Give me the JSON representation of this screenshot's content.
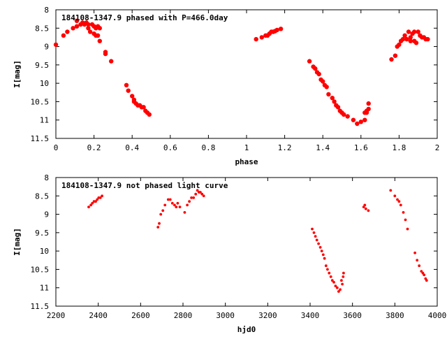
{
  "chart_data": [
    {
      "type": "scatter",
      "title": "184108-1347.9 phased with P=466.0day",
      "xlabel": "phase",
      "ylabel": "I[mag]",
      "xlim": [
        0,
        2
      ],
      "ylim": [
        8,
        11.5
      ],
      "y_inverted": true,
      "xticks": [
        "0",
        "0.2",
        "0.4",
        "0.6",
        "0.8",
        "1",
        "1.2",
        "1.4",
        "1.6",
        "1.8",
        "2"
      ],
      "yticks": [
        "8",
        "8.5",
        "9",
        "9.5",
        "10",
        "10.5",
        "11",
        "11.5"
      ],
      "marker_color": "#ff0000",
      "grid": false,
      "series": [
        {
          "x": [
            0.0,
            0.04,
            0.06,
            0.09,
            0.11,
            0.11,
            0.13,
            0.14,
            0.15,
            0.16,
            0.17,
            0.17,
            0.18,
            0.19,
            0.2,
            0.2,
            0.21,
            0.21,
            0.22,
            0.22,
            0.23,
            0.23,
            0.26,
            0.26,
            0.29,
            0.37,
            0.38,
            0.4,
            0.41,
            0.41,
            0.42,
            0.43,
            0.44,
            0.45,
            0.46,
            0.47,
            0.48,
            0.49,
            1.05,
            1.08,
            1.1,
            1.11,
            1.12,
            1.13,
            1.14,
            1.15,
            1.16,
            1.18,
            1.33,
            1.35,
            1.36,
            1.37,
            1.38,
            1.39,
            1.4,
            1.41,
            1.42,
            1.43,
            1.45,
            1.46,
            1.47,
            1.48,
            1.49,
            1.5,
            1.51,
            1.53,
            1.56,
            1.58,
            1.6,
            1.62,
            1.62,
            1.63,
            1.63,
            1.64,
            1.64,
            1.76,
            1.78,
            1.79,
            1.8,
            1.81,
            1.82,
            1.83,
            1.84,
            1.85,
            1.86,
            1.86,
            1.87,
            1.88,
            1.88,
            1.89,
            1.9,
            1.91,
            1.92,
            1.93,
            1.94,
            1.95
          ],
          "y": [
            8.95,
            8.7,
            8.6,
            8.5,
            8.45,
            8.3,
            8.4,
            8.35,
            8.4,
            8.35,
            8.5,
            8.4,
            8.6,
            8.4,
            8.65,
            8.45,
            8.5,
            8.7,
            8.45,
            8.7,
            8.5,
            8.85,
            9.15,
            9.2,
            9.4,
            10.05,
            10.2,
            10.35,
            10.5,
            10.45,
            10.55,
            10.6,
            10.6,
            10.65,
            10.65,
            10.75,
            10.8,
            10.85,
            8.8,
            8.75,
            8.7,
            8.7,
            8.65,
            8.6,
            8.6,
            8.58,
            8.55,
            8.52,
            9.4,
            9.55,
            9.6,
            9.7,
            9.75,
            9.9,
            9.95,
            10.05,
            10.1,
            10.3,
            10.4,
            10.5,
            10.6,
            10.65,
            10.75,
            10.8,
            10.85,
            10.9,
            11.0,
            11.1,
            11.05,
            10.8,
            11.0,
            10.75,
            10.8,
            10.55,
            10.7,
            9.35,
            9.25,
            9.0,
            8.95,
            8.85,
            8.8,
            8.7,
            8.8,
            8.6,
            8.75,
            8.85,
            8.65,
            8.6,
            8.85,
            8.9,
            8.6,
            8.7,
            8.75,
            8.75,
            8.8,
            8.8
          ]
        }
      ]
    },
    {
      "type": "scatter",
      "title": "184108-1347.9 not phased light curve",
      "xlabel": "hjd0",
      "ylabel": "I[mag]",
      "xlim": [
        2200,
        4000
      ],
      "ylim": [
        8,
        11.5
      ],
      "y_inverted": true,
      "xticks": [
        "2200",
        "2400",
        "2600",
        "2800",
        "3000",
        "3200",
        "3400",
        "3600",
        "3800",
        "4000"
      ],
      "yticks": [
        "8",
        "8.5",
        "9",
        "9.5",
        "10",
        "10.5",
        "11",
        "11.5"
      ],
      "marker_color": "#ff0000",
      "grid": false,
      "series": [
        {
          "x": [
            2355,
            2365,
            2372,
            2380,
            2388,
            2395,
            2402,
            2410,
            2418,
            2682,
            2688,
            2695,
            2705,
            2715,
            2730,
            2740,
            2750,
            2760,
            2768,
            2775,
            2785,
            2808,
            2820,
            2830,
            2840,
            2850,
            2860,
            2868,
            2875,
            2882,
            2890,
            2898,
            3410,
            3418,
            3425,
            3432,
            3440,
            3448,
            3455,
            3462,
            3468,
            3475,
            3482,
            3490,
            3498,
            3505,
            3512,
            3520,
            3528,
            3535,
            3542,
            3548,
            3552,
            3556,
            3558,
            3653,
            3658,
            3663,
            3675,
            3780,
            3800,
            3812,
            3820,
            3828,
            3840,
            3850,
            3860,
            3895,
            3905,
            3915,
            3925,
            3932,
            3938,
            3945,
            3950
          ],
          "y": [
            8.8,
            8.75,
            8.7,
            8.65,
            8.65,
            8.6,
            8.55,
            8.55,
            8.5,
            9.35,
            9.25,
            9.0,
            8.9,
            8.75,
            8.6,
            8.6,
            8.7,
            8.75,
            8.8,
            8.7,
            8.8,
            8.95,
            8.75,
            8.65,
            8.55,
            8.55,
            8.45,
            8.35,
            8.4,
            8.4,
            8.45,
            8.5,
            9.4,
            9.5,
            9.6,
            9.7,
            9.8,
            9.9,
            10.0,
            10.1,
            10.2,
            10.4,
            10.5,
            10.6,
            10.7,
            10.8,
            10.85,
            10.95,
            11.0,
            11.1,
            11.05,
            10.8,
            10.9,
            10.7,
            10.6,
            8.8,
            8.75,
            8.85,
            8.9,
            8.35,
            8.5,
            8.6,
            8.65,
            8.75,
            8.95,
            9.15,
            9.4,
            10.05,
            10.25,
            10.4,
            10.55,
            10.6,
            10.65,
            10.75,
            10.8
          ]
        }
      ]
    }
  ]
}
